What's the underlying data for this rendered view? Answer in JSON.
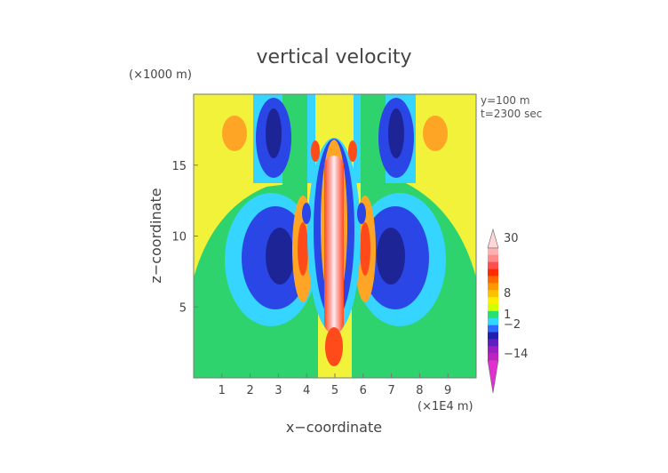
{
  "chart_data": {
    "type": "heatmap",
    "title": "vertical velocity",
    "xlabel": "x−coordinate",
    "ylabel": "z−coordinate",
    "x_unit": "(×1E4 m)",
    "y_unit": "(×1000 m)",
    "annotations": [
      "y=100  m",
      "t=2300 sec"
    ],
    "xlim": [
      0,
      10
    ],
    "ylim": [
      0,
      20
    ],
    "x_ticks": [
      "1",
      "2",
      "3",
      "4",
      "5",
      "6",
      "7",
      "8",
      "9"
    ],
    "y_ticks": [
      "5",
      "10",
      "15"
    ],
    "colorbar": {
      "tick_labels": [
        "30",
        "8",
        "1",
        "−2",
        "−14"
      ],
      "colors": [
        "#ffd6d6",
        "#ffb0b0",
        "#ff8a8a",
        "#ff5050",
        "#ff2a00",
        "#ff6a00",
        "#ff9800",
        "#ffc000",
        "#ffee00",
        "#d4ff00",
        "#28e070",
        "#30d8ff",
        "#2d6bff",
        "#2020b0",
        "#6020c0",
        "#9a20c0",
        "#c020c0",
        "#e030d0"
      ]
    },
    "field_colors": {
      "background": "#f2f23a",
      "far_field": "#2fd36e",
      "updraft_core": "#ffd2d2",
      "strong_up": "#ff4a1a",
      "weak_up": "#ffa526",
      "weak_down": "#36d5ff",
      "strong_down": "#2b46e6",
      "deep_down": "#1d2596"
    }
  }
}
